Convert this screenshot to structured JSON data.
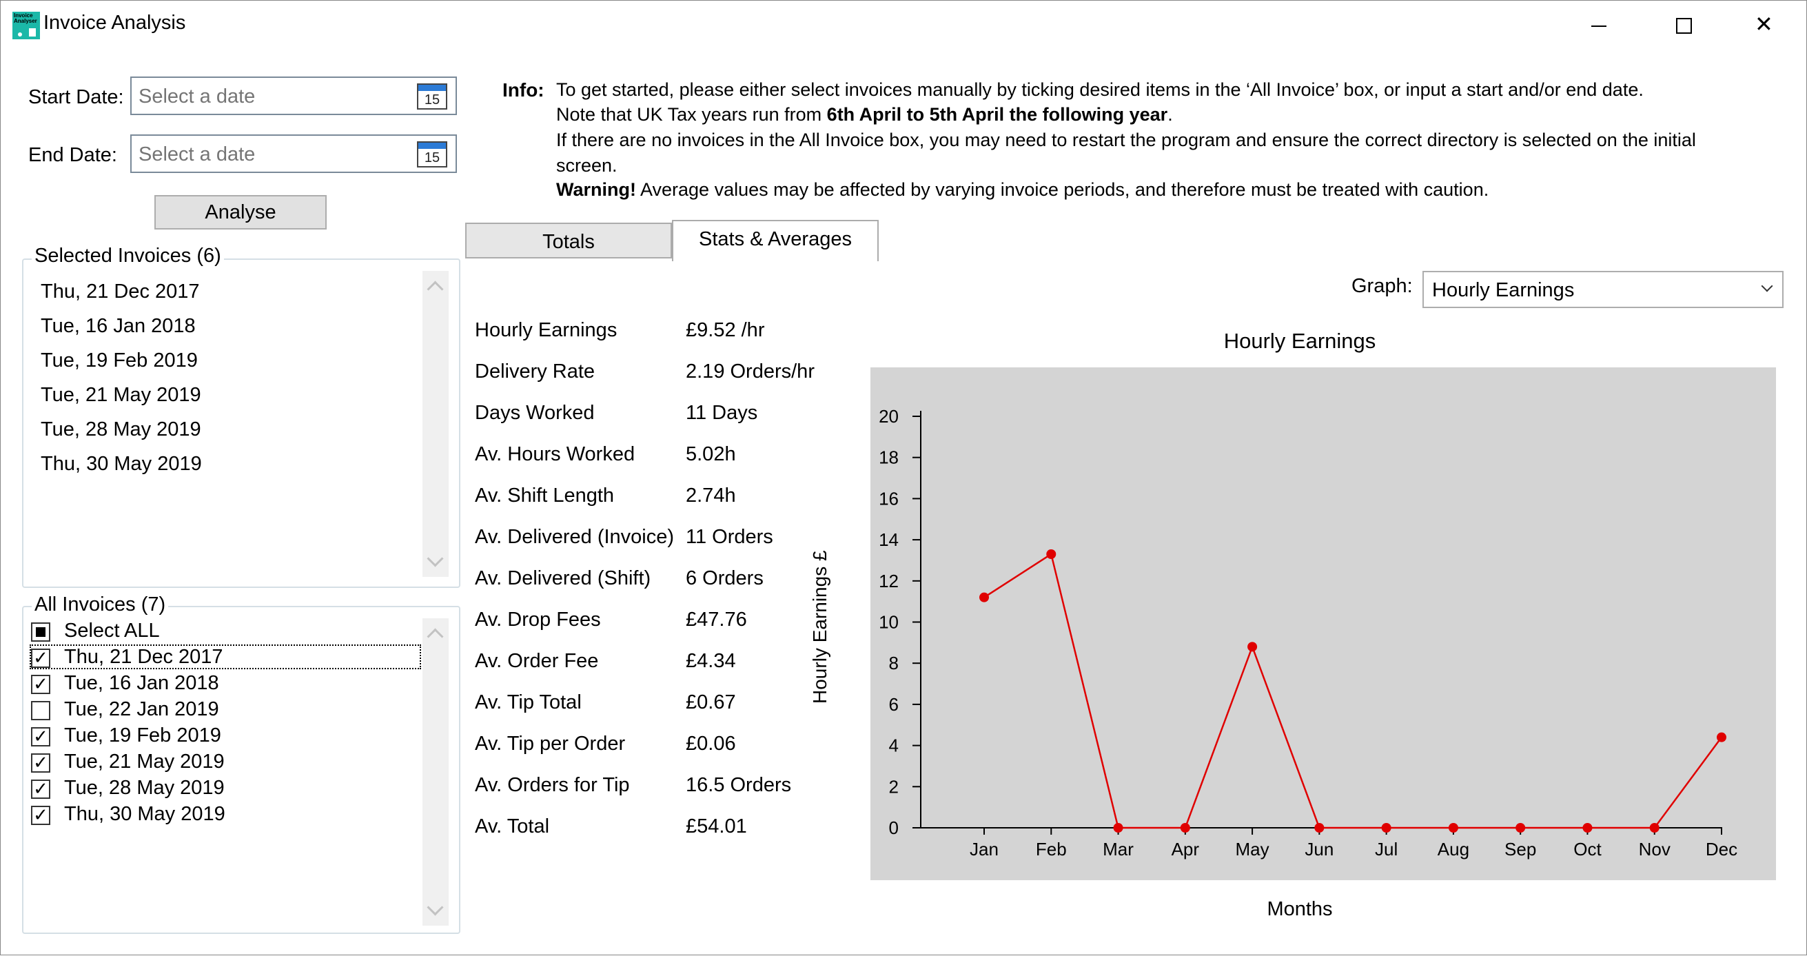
{
  "window": {
    "title": "Invoice Analysis",
    "icon_text": "Invoice Analyser"
  },
  "dates": {
    "start_label": "Start Date:",
    "end_label": "End Date:",
    "placeholder": "Select a date",
    "calendar_day": "15"
  },
  "analyse_label": "Analyse",
  "selected": {
    "title": "Selected Invoices (6)",
    "items": [
      "Thu, 21 Dec 2017",
      "Tue, 16 Jan 2018",
      "Tue, 19 Feb 2019",
      "Tue, 21 May 2019",
      "Tue, 28 May 2019",
      "Thu, 30 May 2019"
    ]
  },
  "all": {
    "title": "All Invoices (7)",
    "select_all": "Select ALL",
    "items": [
      {
        "label": "Thu, 21 Dec 2017",
        "checked": true
      },
      {
        "label": "Tue, 16 Jan 2018",
        "checked": true
      },
      {
        "label": "Tue, 22 Jan 2019",
        "checked": false
      },
      {
        "label": "Tue, 19 Feb 2019",
        "checked": true
      },
      {
        "label": "Tue, 21 May 2019",
        "checked": true
      },
      {
        "label": "Tue, 28 May 2019",
        "checked": true
      },
      {
        "label": "Thu, 30 May 2019",
        "checked": true
      }
    ]
  },
  "info": {
    "heading": "Info:",
    "line1": "To get started, please either select invoices manually by ticking desired items in the ‘All Invoice’ box, or input a start and/or end date.",
    "line2_prefix": "Note that UK Tax years run from ",
    "line2_bold": "6th April to 5th April the following year",
    "line2_suffix": ".",
    "line3": "If there are no invoices in the All Invoice box, you may need to restart the program and ensure the correct directory is selected on the initial",
    "line4": "screen.",
    "warning_bold": "Warning!",
    "warning_text": " Average values may be affected by varying invoice periods, and therefore must be treated with caution."
  },
  "tabs": {
    "totals": "Totals",
    "stats": "Stats & Averages"
  },
  "stats": [
    {
      "label": "Hourly Earnings",
      "value": "£9.52 /hr"
    },
    {
      "label": "Delivery Rate",
      "value": "2.19 Orders/hr"
    },
    {
      "label": "Days Worked",
      "value": "11 Days"
    },
    {
      "label": "Av. Hours Worked",
      "value": "5.02h"
    },
    {
      "label": "Av. Shift Length",
      "value": "2.74h"
    },
    {
      "label": "Av. Delivered (Invoice)",
      "value": "11 Orders"
    },
    {
      "label": "Av. Delivered (Shift)",
      "value": "6 Orders"
    },
    {
      "label": "Av. Drop Fees",
      "value": "£47.76"
    },
    {
      "label": "Av. Order Fee",
      "value": "£4.34"
    },
    {
      "label": "Av. Tip Total",
      "value": "£0.67"
    },
    {
      "label": "Av. Tip per Order",
      "value": "£0.06"
    },
    {
      "label": "Av. Orders for Tip",
      "value": "16.5 Orders"
    },
    {
      "label": "Av. Total",
      "value": "£54.01"
    }
  ],
  "graph": {
    "label": "Graph:",
    "selected": "Hourly Earnings"
  },
  "chart_data": {
    "type": "line",
    "title": "Hourly Earnings",
    "xlabel": "Months",
    "ylabel": "Hourly Earnings £",
    "categories": [
      "Jan",
      "Feb",
      "Mar",
      "Apr",
      "May",
      "Jun",
      "Jul",
      "Aug",
      "Sep",
      "Oct",
      "Nov",
      "Dec"
    ],
    "values": [
      11.2,
      13.3,
      0,
      0,
      8.8,
      0,
      0,
      0,
      0,
      0,
      0,
      4.4
    ],
    "ylim": [
      0,
      20
    ],
    "yticks": [
      0,
      2,
      4,
      6,
      8,
      10,
      12,
      14,
      16,
      18,
      20
    ],
    "grid": false,
    "color": "#e00000",
    "background": "#d4d4d4"
  }
}
